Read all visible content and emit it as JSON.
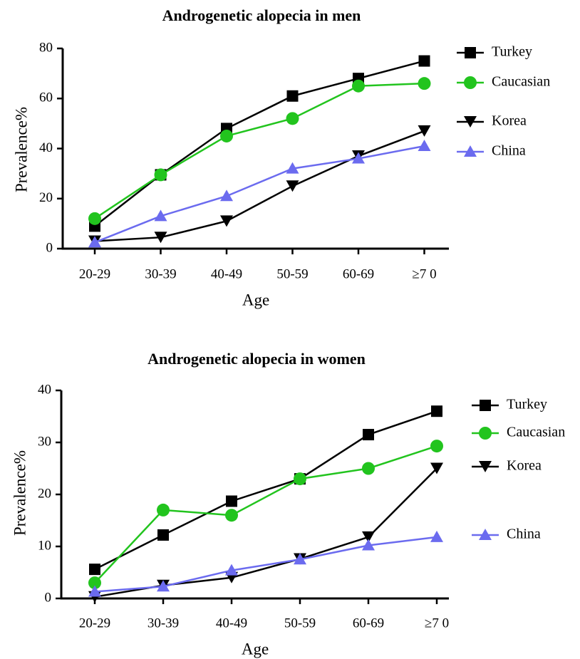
{
  "colors": {
    "Turkey": "#000000",
    "Caucasian": "#22c41e",
    "Korea": "#000000",
    "China": "#6b6bef"
  },
  "chart_data": [
    {
      "type": "line",
      "title": "Androgenetic alopecia in men",
      "xlabel": "Age",
      "ylabel": "Prevalence%",
      "categories": [
        "20-29",
        "30-39",
        "40-49",
        "50-59",
        "60-69",
        "≥7 0"
      ],
      "ylim": [
        0,
        80
      ],
      "yticks": [
        "0",
        "20",
        "40",
        "60",
        "80"
      ],
      "legend_position": "right",
      "series": [
        {
          "name": "Turkey",
          "marker": "square",
          "values": [
            9,
            29.5,
            48,
            61,
            68,
            75
          ]
        },
        {
          "name": "Caucasian",
          "marker": "circle",
          "values": [
            12,
            29.5,
            45,
            52,
            65,
            66
          ]
        },
        {
          "name": "Korea",
          "marker": "triangle-down",
          "values": [
            3,
            4.5,
            11,
            25,
            37,
            47
          ]
        },
        {
          "name": "China",
          "marker": "triangle-up",
          "values": [
            2.5,
            13,
            21,
            32,
            36,
            41
          ]
        }
      ]
    },
    {
      "type": "line",
      "title": "Androgenetic alopecia in women",
      "xlabel": "Age",
      "ylabel": "Prevalence%",
      "categories": [
        "20-29",
        "30-39",
        "40-49",
        "50-59",
        "60-69",
        "≥7 0"
      ],
      "ylim": [
        0,
        40
      ],
      "yticks": [
        "0",
        "10",
        "20",
        "30",
        "40"
      ],
      "legend_position": "right",
      "series": [
        {
          "name": "Turkey",
          "marker": "square",
          "values": [
            5.6,
            12.2,
            18.7,
            23,
            31.5,
            36
          ]
        },
        {
          "name": "Caucasian",
          "marker": "circle",
          "values": [
            3,
            17,
            16,
            23,
            25,
            29.3
          ]
        },
        {
          "name": "Korea",
          "marker": "triangle-down",
          "values": [
            0.3,
            2.5,
            4,
            7.6,
            11.8,
            25
          ]
        },
        {
          "name": "China",
          "marker": "triangle-up",
          "values": [
            1.3,
            2.3,
            5.4,
            7.5,
            10.2,
            11.8
          ]
        }
      ]
    }
  ]
}
